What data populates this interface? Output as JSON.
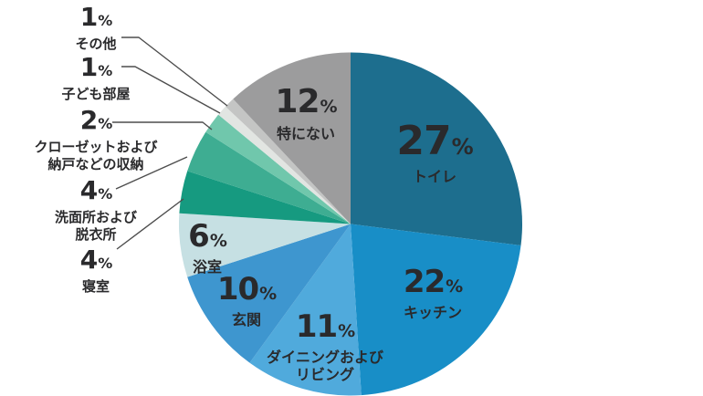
{
  "figure": {
    "background": "#ffffff",
    "text_color": "#2a2a2c",
    "line_color": "#4d4d4d"
  },
  "chart_data": {
    "type": "pie",
    "title": "",
    "unit": "%",
    "direction": "clockwise",
    "start_angle": "12-oclock",
    "legend_position": "none",
    "slices": [
      {
        "name": "トイレ",
        "slug": "toilet",
        "value": 27,
        "color": "#1d6e8e",
        "label_placement": "inside"
      },
      {
        "name": "キッチン",
        "slug": "kitchen",
        "value": 22,
        "color": "#188ec7",
        "label_placement": "inside"
      },
      {
        "name": "ダイニングおよびリビング",
        "slug": "dining-living",
        "value": 11,
        "color": "#50aadc",
        "label_placement": "inside"
      },
      {
        "name": "玄関",
        "slug": "entrance",
        "value": 10,
        "color": "#3e96cf",
        "label_placement": "inside"
      },
      {
        "name": "浴室",
        "slug": "bathroom",
        "value": 6,
        "color": "#c6e0e3",
        "label_placement": "inside"
      },
      {
        "name": "寝室",
        "slug": "bedroom",
        "value": 4,
        "color": "#169a80",
        "label_placement": "callout"
      },
      {
        "name": "洗面所および脱衣所",
        "slug": "washroom",
        "value": 4,
        "color": "#3ead92",
        "label_placement": "callout"
      },
      {
        "name": "クローゼットおよび納戸などの収納",
        "slug": "closet-storage",
        "value": 2,
        "color": "#70c7ac",
        "label_placement": "callout"
      },
      {
        "name": "子ども部屋",
        "slug": "kids-room",
        "value": 1,
        "color": "#e2e5e2",
        "label_placement": "callout"
      },
      {
        "name": "その他",
        "slug": "other",
        "value": 1,
        "color": "#c4c5c4",
        "label_placement": "callout"
      },
      {
        "name": "特にない",
        "slug": "none-in-particular",
        "value": 12,
        "color": "#9c9c9d",
        "label_placement": "inside"
      }
    ]
  },
  "inside_labels": [
    {
      "value": "27",
      "unit": "%",
      "lines": [
        "トイレ"
      ]
    },
    {
      "value": "22",
      "unit": "%",
      "lines": [
        "キッチン"
      ]
    },
    {
      "value": "11",
      "unit": "%",
      "lines": [
        "ダイニングおよび",
        "リビング"
      ]
    },
    {
      "value": "10",
      "unit": "%",
      "lines": [
        "玄関"
      ]
    },
    {
      "value": "6",
      "unit": "%",
      "lines": [
        "浴室"
      ]
    },
    {
      "value": "12",
      "unit": "%",
      "lines": [
        "特にない"
      ]
    }
  ],
  "callout_labels": [
    {
      "value": "1",
      "unit": "%",
      "lines": [
        "その他"
      ]
    },
    {
      "value": "1",
      "unit": "%",
      "lines": [
        "子ども部屋"
      ]
    },
    {
      "value": "2",
      "unit": "%",
      "lines": [
        "クローゼットおよび",
        "納戸などの収納"
      ]
    },
    {
      "value": "4",
      "unit": "%",
      "lines": [
        "洗面所および",
        "脱衣所"
      ]
    },
    {
      "value": "4",
      "unit": "%",
      "lines": [
        "寝室"
      ]
    }
  ]
}
